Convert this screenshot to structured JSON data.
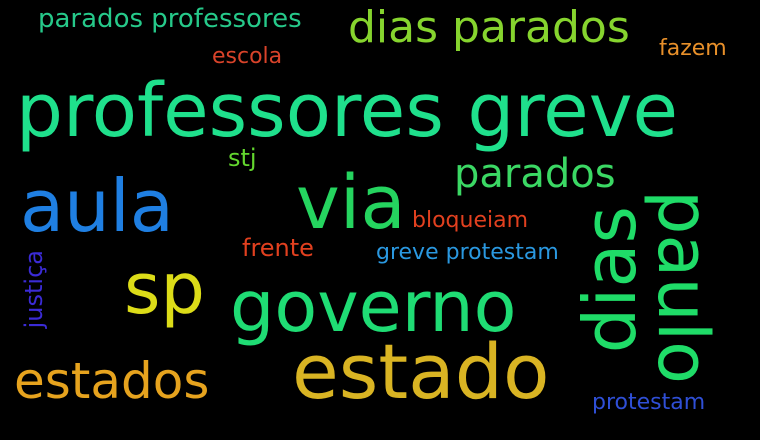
{
  "words": {
    "parados_professores": "parados professores",
    "dias_parados": "dias parados",
    "escola": "escola",
    "fazem": "fazem",
    "professores_greve": "professores greve",
    "stj": "stj",
    "parados": "parados",
    "aula": "aula",
    "via": "via",
    "bloqueiam": "bloqueiam",
    "frente": "frente",
    "greve_protestam": "greve protestam",
    "sp": "sp",
    "governo": "governo",
    "estado": "estado",
    "estados": "estados",
    "protestam": "protestam",
    "justica": "justiça",
    "dias": "dias",
    "paulo": "paulo"
  },
  "colors": {
    "background": "#000000",
    "teal": "#1fe08c",
    "lime": "#86d42e",
    "green": "#25d45f",
    "blue": "#1f7fe2",
    "yellow": "#dcdc18",
    "gold": "#d9b423",
    "orange": "#e6a31e",
    "red": "#e2401f",
    "indigo": "#3b2bd6"
  }
}
